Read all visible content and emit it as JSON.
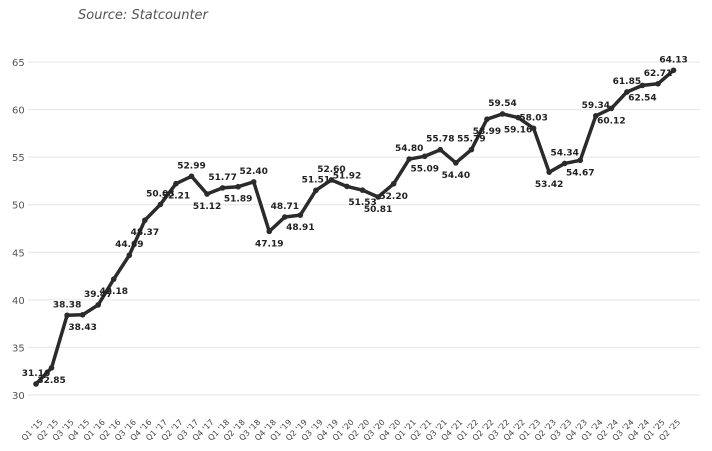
{
  "source_note": "Source: Statcounter",
  "colors": {
    "line": "#2b2b2b",
    "grid": "#e4e4e4",
    "text": "#222222"
  },
  "chart_data": {
    "type": "line",
    "title": "",
    "xlabel": "",
    "ylabel": "",
    "ylim": [
      30,
      65
    ],
    "yticks": [
      30,
      35,
      40,
      45,
      50,
      55,
      60,
      65
    ],
    "grid": true,
    "categories": [
      "Q1 '15",
      "Q2 '15",
      "Q3 '15",
      "Q4 '15",
      "Q1 '16",
      "Q2 '16",
      "Q3 '16",
      "Q4 '16",
      "Q1 '17",
      "Q2 '17",
      "Q3 '17",
      "Q4 '17",
      "Q1 '18",
      "Q2 '18",
      "Q3 '18",
      "Q4 '18",
      "Q1 '19",
      "Q2 '19",
      "Q3 '19",
      "Q4 '19",
      "Q1 '20",
      "Q2 '20",
      "Q3 '20",
      "Q4 '20",
      "Q1 '21",
      "Q2 '21",
      "Q3 '21",
      "Q4 '21",
      "Q1 '22",
      "Q2 '22",
      "Q3 '22",
      "Q4 '22",
      "Q1 '23",
      "Q2 '23",
      "Q3 '23",
      "Q4 '23",
      "Q1 '24",
      "Q2 '24",
      "Q3 '24",
      "Q4 '24",
      "Q1 '25",
      "Q2 '25"
    ],
    "values": [
      31.16,
      32.85,
      38.38,
      38.43,
      39.47,
      42.18,
      44.69,
      48.37,
      50.03,
      52.21,
      52.99,
      51.12,
      51.77,
      51.89,
      52.4,
      47.19,
      48.71,
      48.91,
      51.51,
      52.6,
      51.92,
      51.53,
      50.81,
      52.2,
      54.8,
      55.09,
      55.78,
      54.4,
      55.79,
      58.99,
      59.54,
      59.16,
      58.03,
      53.42,
      54.34,
      54.67,
      59.34,
      60.12,
      61.85,
      62.54,
      62.71,
      64.13
    ],
    "labels": [
      "31.16",
      "32.85",
      "38.38",
      "38.43",
      "39.47",
      "42.18",
      "44.69",
      "48.37",
      "50.03",
      "52.21",
      "52.99",
      "51.12",
      "51.77",
      "51.89",
      "52.40",
      "47.19",
      "48.71",
      "48.91",
      "51.51",
      "52.60",
      "51.92",
      "51.53",
      "50.81",
      "52.20",
      "54.80",
      "55.09",
      "55.78",
      "54.40",
      "55.79",
      "58.99",
      "59.54",
      "59.16",
      "58.03",
      "53.42",
      "54.34",
      "54.67",
      "59.34",
      "60.12",
      "61.85",
      "62.54",
      "62.71",
      "64.13"
    ]
  }
}
